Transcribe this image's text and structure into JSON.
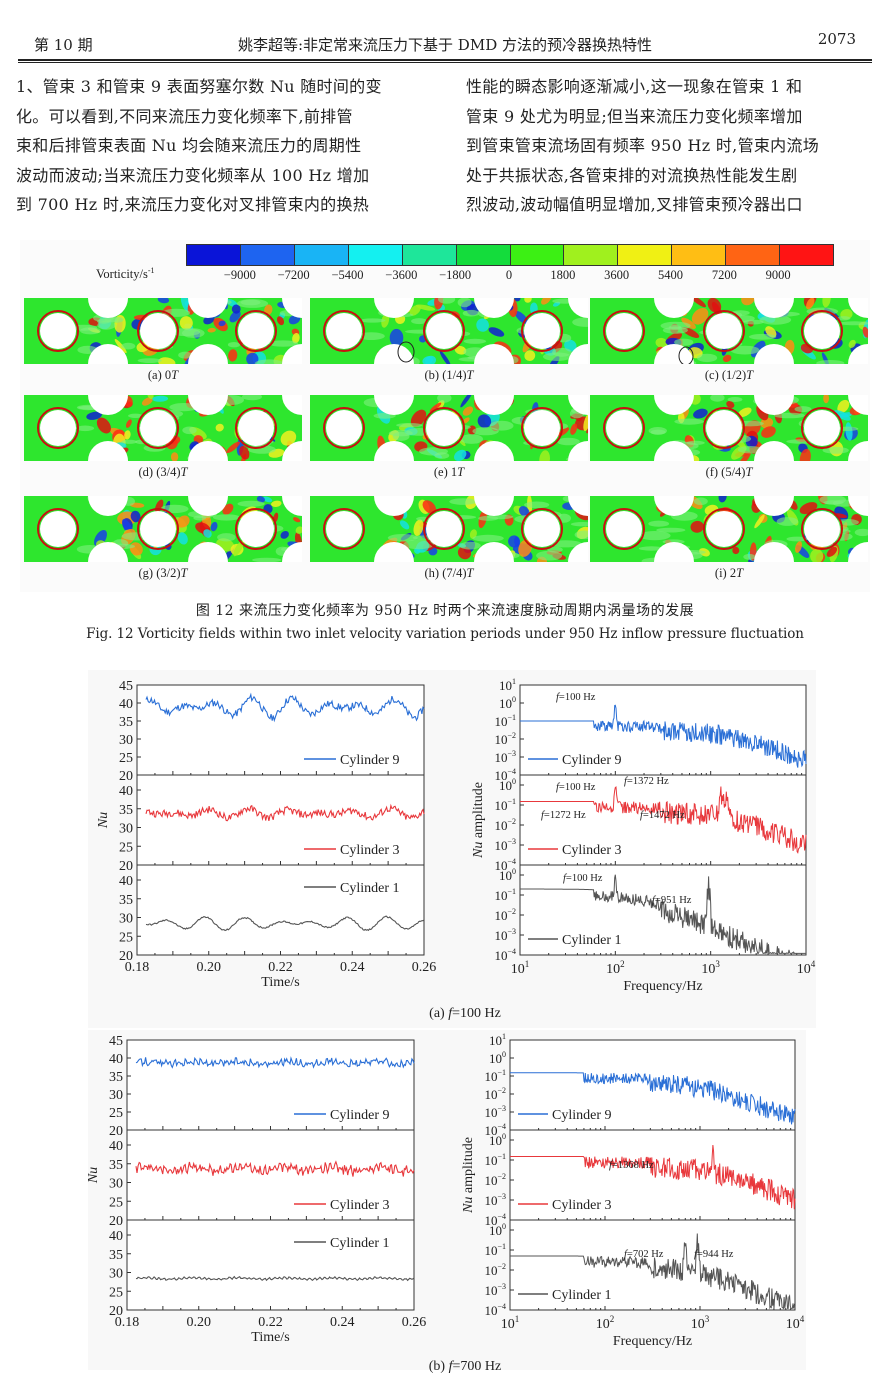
{
  "header": {
    "issue": "第 10 期",
    "title": "姚李超等:非定常来流压力下基于 DMD 方法的预冷器换热特性",
    "page_number": "2073"
  },
  "body_text": {
    "left_column": [
      "1、管束 3 和管束 9 表面努塞尔数 Nu 随时间的变",
      "化。可以看到,不同来流压力变化频率下,前排管",
      "束和后排管束表面 Nu 均会随来流压力的周期性",
      "波动而波动;当来流压力变化频率从 100 Hz 增加",
      "到 700 Hz 时,来流压力变化对叉排管束内的换热"
    ],
    "right_column": [
      "性能的瞬态影响逐渐减小,这一现象在管束 1 和",
      "管束 9 处尤为明显;但当来流压力变化频率增加",
      "到管束管束流场固有频率 950 Hz 时,管束内流场",
      "处于共振状态,各管束排的对流换热性能发生剧",
      "烈波动,波动幅值明显增加,叉排管束预冷器出口"
    ]
  },
  "figure12": {
    "colorbar": {
      "title": "Vorticity/s",
      "title_exponent": "-1",
      "ticks": [
        "-9000",
        "-7200",
        "-5400",
        "-3600",
        "-1800",
        "0",
        "1800",
        "3600",
        "5400",
        "7200",
        "9000"
      ],
      "colors": [
        "#0a14d8",
        "#1e64f0",
        "#19b4f5",
        "#14f0f0",
        "#1ee69a",
        "#14dc3c",
        "#3cf014",
        "#a0f01e",
        "#f0f014",
        "#ffbe14",
        "#ff6414",
        "#ff1414"
      ]
    },
    "panels": [
      {
        "label": "(a) 0",
        "italic": "T"
      },
      {
        "label": "(b) (1/4)",
        "italic": "T"
      },
      {
        "label": "(c) (1/2)",
        "italic": "T"
      },
      {
        "label": "(d) (3/4)",
        "italic": "T"
      },
      {
        "label": "(e) 1",
        "italic": "T"
      },
      {
        "label": "(f) (5/4)",
        "italic": "T"
      },
      {
        "label": "(g) (3/2)",
        "italic": "T"
      },
      {
        "label": "(h) (7/4)",
        "italic": "T"
      },
      {
        "label": "(i) 2",
        "italic": "T"
      }
    ],
    "caption_cn": "图 12   来流压力变化频率为 950 Hz 时两个来流速度脉动周期内涡量场的发展",
    "caption_en": "Fig. 12   Vorticity fields within two inlet velocity variation periods under 950 Hz inflow pressure fluctuation"
  },
  "chart_data": [
    {
      "type": "line",
      "title": "(a) f=100 Hz — Nu vs time",
      "subcaption_prefix": "(a) ",
      "subcaption_italic": "f",
      "subcaption_suffix": "=100 Hz",
      "xlabel": "Time/s",
      "ylabel": "Nu",
      "xlim": [
        0.18,
        0.26
      ],
      "ylim": [
        20,
        45
      ],
      "x_ticks": [
        "0.18",
        "0.20",
        "0.22",
        "0.24",
        "0.26"
      ],
      "y_ticks_top": [
        "20",
        "25",
        "30",
        "35",
        "40",
        "45"
      ],
      "y_ticks": [
        "20",
        "25",
        "30",
        "35",
        "40"
      ],
      "series": [
        {
          "name": "Cylinder 9",
          "color": "#2a6fd6",
          "mean": 38.8,
          "amplitude": 2.2,
          "period_s": 0.01,
          "noise": 1.0
        },
        {
          "name": "Cylinder 3",
          "color": "#e8383c",
          "mean": 33.8,
          "amplitude": 1.0,
          "period_s": 0.01,
          "noise": 1.0
        },
        {
          "name": "Cylinder 1",
          "color": "#555555",
          "mean": 28.4,
          "amplitude": 1.4,
          "period_s": 0.01,
          "noise": 0.2
        }
      ]
    },
    {
      "type": "line",
      "title": "(a) f=100 Hz — Nu amplitude spectrum",
      "xlabel": "Frequency/Hz",
      "ylabel_italic": "Nu",
      "ylabel": " amplitude",
      "xscale": "log",
      "yscale": "log",
      "xlim": [
        10,
        10000
      ],
      "ylim_top": [
        0.0001,
        10
      ],
      "ylim": [
        0.0001,
        3
      ],
      "x_ticks": [
        "10",
        "10",
        "10",
        "10"
      ],
      "x_tick_exponents": [
        "1",
        "2",
        "3",
        "4"
      ],
      "y_tick_exponents_top": [
        "1",
        "0",
        "-1",
        "-2",
        "-3",
        "-4"
      ],
      "y_tick_exponents": [
        "0",
        "-1",
        "-2",
        "-3",
        "-4"
      ],
      "y_tick_base": "10",
      "series": [
        {
          "name": "Cylinder 9",
          "color": "#2a6fd6",
          "peaks_hz": [
            100
          ],
          "base_level": 0.1,
          "rolloff_hz": 1500
        },
        {
          "name": "Cylinder 3",
          "color": "#e8383c",
          "peaks_hz": [
            100,
            1272,
            1372,
            1472
          ],
          "base_level": 0.15,
          "rolloff_hz": 1500
        },
        {
          "name": "Cylinder 1",
          "color": "#555555",
          "peaks_hz": [
            100,
            951
          ],
          "base_level": 0.2,
          "rolloff_hz": 200
        }
      ],
      "annotations": [
        {
          "panel": 0,
          "italic": "f",
          "text": "=100 Hz"
        },
        {
          "panel": 1,
          "italic": "f",
          "text": "=100 Hz"
        },
        {
          "panel": 1,
          "italic": "f",
          "text": "=1272 Hz"
        },
        {
          "panel": 1,
          "italic": "f",
          "text": "=1372 Hz"
        },
        {
          "panel": 1,
          "italic": "f",
          "text": "=1472 Hz"
        },
        {
          "panel": 2,
          "italic": "f",
          "text": "=100 Hz"
        },
        {
          "panel": 2,
          "italic": "f",
          "text": "=951 Hz"
        }
      ]
    },
    {
      "type": "line",
      "title": "(b) f=700 Hz — Nu vs time",
      "subcaption_prefix": "(b) ",
      "subcaption_italic": "f",
      "subcaption_suffix": "=700 Hz",
      "xlabel": "Time/s",
      "ylabel": "Nu",
      "xlim": [
        0.18,
        0.26
      ],
      "ylim": [
        20,
        45
      ],
      "x_ticks": [
        "0.18",
        "0.20",
        "0.22",
        "0.24",
        "0.26"
      ],
      "y_ticks_top": [
        "20",
        "25",
        "30",
        "35",
        "40",
        "45"
      ],
      "y_ticks": [
        "20",
        "25",
        "30",
        "35",
        "40"
      ],
      "series": [
        {
          "name": "Cylinder 9",
          "color": "#2a6fd6",
          "mean": 38.7,
          "amplitude": 0.6,
          "period_s": 0.0014,
          "noise": 0.8
        },
        {
          "name": "Cylinder 3",
          "color": "#e8383c",
          "mean": 33.6,
          "amplitude": 0.9,
          "period_s": 0.0014,
          "noise": 1.0
        },
        {
          "name": "Cylinder 1",
          "color": "#555555",
          "mean": 28.4,
          "amplitude": 0.3,
          "period_s": 0.0014,
          "noise": 0.15
        }
      ]
    },
    {
      "type": "line",
      "title": "(b) f=700 Hz — Nu amplitude spectrum",
      "xlabel": "Frequency/Hz",
      "ylabel_italic": "Nu",
      "ylabel": " amplitude",
      "xscale": "log",
      "yscale": "log",
      "xlim": [
        10,
        10000
      ],
      "ylim_top": [
        0.0001,
        10
      ],
      "ylim": [
        0.0001,
        3
      ],
      "x_ticks": [
        "10",
        "10",
        "10",
        "10"
      ],
      "x_tick_exponents": [
        "1",
        "2",
        "3",
        "4"
      ],
      "y_tick_exponents_top": [
        "1",
        "0",
        "-1",
        "-2",
        "-3",
        "-4"
      ],
      "y_tick_exponents": [
        "0",
        "-1",
        "-2",
        "-3",
        "-4"
      ],
      "y_tick_base": "10",
      "series": [
        {
          "name": "Cylinder 9",
          "color": "#2a6fd6",
          "peaks_hz": [],
          "base_level": 0.15,
          "rolloff_hz": 1000
        },
        {
          "name": "Cylinder 3",
          "color": "#e8383c",
          "peaks_hz": [
            1368
          ],
          "base_level": 0.15,
          "rolloff_hz": 1500
        },
        {
          "name": "Cylinder 1",
          "color": "#555555",
          "peaks_hz": [
            702,
            944
          ],
          "base_level": 0.05,
          "rolloff_hz": 900
        }
      ],
      "annotations": [
        {
          "panel": 1,
          "italic": "f",
          "text": "=1368 Hz"
        },
        {
          "panel": 2,
          "italic": "f",
          "text": "=702 Hz"
        },
        {
          "panel": 2,
          "italic": "f",
          "text": "=944 Hz"
        }
      ]
    }
  ]
}
